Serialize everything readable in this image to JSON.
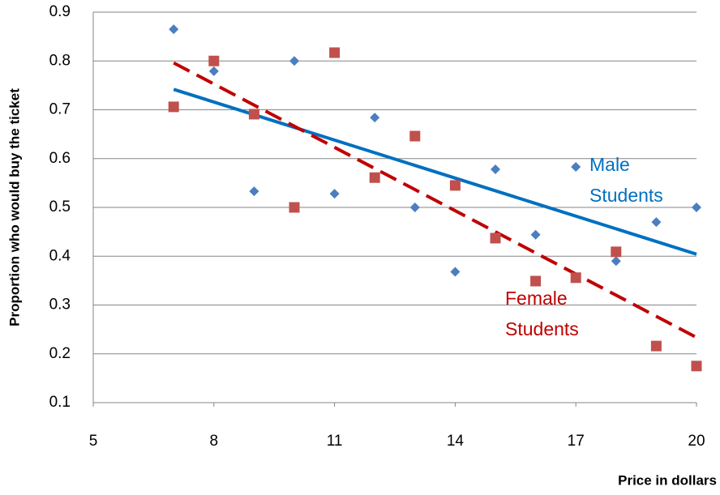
{
  "chart_data": {
    "type": "scatter",
    "x_label": "Price in dollars",
    "y_label": "Proportion who would buy the ticket",
    "xlim": [
      5,
      20
    ],
    "xticks": [
      5,
      8,
      11,
      14,
      17,
      20
    ],
    "ylim": [
      0.1,
      0.9
    ],
    "yticks": [
      0.1,
      0.2,
      0.3,
      0.4,
      0.5,
      0.6,
      0.7,
      0.8,
      0.9
    ],
    "grid": true,
    "trendline": true,
    "series": [
      {
        "name": "Male Students",
        "label_lines": [
          "Male",
          "Students"
        ],
        "color": "#4a7ebf",
        "line_color": "#0070c0",
        "marker": "diamond",
        "x": [
          7,
          8,
          9,
          10,
          11,
          12,
          13,
          14,
          15,
          16,
          17,
          18,
          19,
          20
        ],
        "values": [
          0.865,
          0.779,
          0.533,
          0.8,
          0.528,
          0.684,
          0.5,
          0.368,
          0.578,
          0.444,
          0.583,
          0.39,
          0.47,
          0.5
        ]
      },
      {
        "name": "Female Students",
        "label_lines": [
          "Female",
          "Students"
        ],
        "color": "#c0504d",
        "line_color": "#c00000",
        "marker": "square",
        "x": [
          7,
          8,
          9,
          10,
          11,
          12,
          13,
          14,
          15,
          16,
          17,
          18,
          19,
          20
        ],
        "values": [
          0.706,
          0.8,
          0.691,
          0.5,
          0.817,
          0.561,
          0.646,
          0.545,
          0.437,
          0.349,
          0.356,
          0.409,
          0.216,
          0.175
        ]
      }
    ]
  }
}
